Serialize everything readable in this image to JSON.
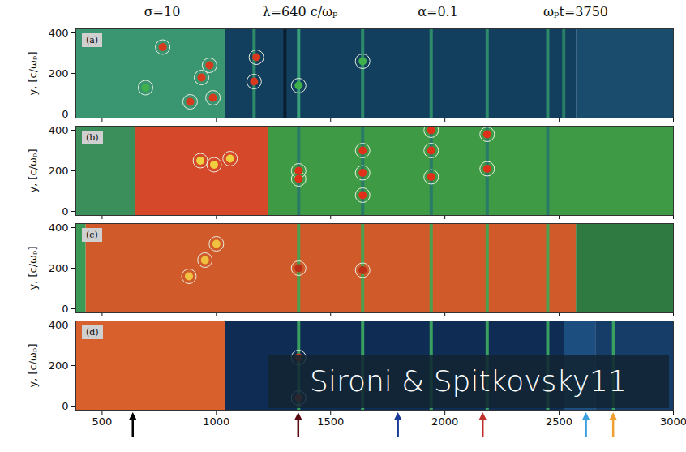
{
  "chart_data": [
    {
      "type": "heatmap",
      "panel": "(a)",
      "ylabel": "y, [c/ωₚ]",
      "annotations": [
        "σ=10",
        "λ=640  c/ωₚ",
        "α=0.1",
        "ωₚt=3750"
      ],
      "xlim": [
        385,
        3000
      ],
      "ylim": [
        -20,
        420
      ],
      "xticks": [
        500,
        1000,
        1500,
        2000,
        2500,
        3000
      ],
      "yticks": [
        0,
        200,
        400
      ],
      "tick_labels": "y",
      "regions": [
        {
          "x0": 385,
          "x1": 1040,
          "color": "#3a9670"
        },
        {
          "x0": 1040,
          "x1": 2575,
          "color": "#123f5e"
        },
        {
          "x0": 2575,
          "x1": 3000,
          "color": "#1a4c6e"
        }
      ],
      "stripes": [
        {
          "x": 1165,
          "color": "#2e8b6a"
        },
        {
          "x": 1300,
          "color": "#0a1e30"
        },
        {
          "x": 1360,
          "color": "#3aa07a"
        },
        {
          "x": 1640,
          "color": "#2e8b6a"
        },
        {
          "x": 1940,
          "color": "#2e8b6a"
        },
        {
          "x": 2185,
          "color": "#2e8b6a"
        },
        {
          "x": 2450,
          "color": "#2e8b6a"
        },
        {
          "x": 2520,
          "color": "#2a7d66"
        }
      ],
      "blobs": [
        {
          "x": 765,
          "y": 330,
          "color": "#d83a1e"
        },
        {
          "x": 970,
          "y": 240,
          "color": "#d83a1e"
        },
        {
          "x": 935,
          "y": 180,
          "color": "#d83a1e"
        },
        {
          "x": 690,
          "y": 130,
          "color": "#3fb04a"
        },
        {
          "x": 885,
          "y": 60,
          "color": "#d83a1e"
        },
        {
          "x": 985,
          "y": 80,
          "color": "#d83a1e"
        },
        {
          "x": 1165,
          "y": 160,
          "color": "#d83a1e"
        },
        {
          "x": 1175,
          "y": 280,
          "color": "#d83a1e"
        },
        {
          "x": 1360,
          "y": 140,
          "color": "#3fb04a"
        },
        {
          "x": 1640,
          "y": 260,
          "color": "#3fb04a"
        }
      ]
    },
    {
      "type": "heatmap",
      "panel": "(b)",
      "ylabel": "y, [c/ωₚ]",
      "xlim": [
        385,
        3000
      ],
      "ylim": [
        -20,
        420
      ],
      "xticks": [
        500,
        1000,
        1500,
        2000,
        2500,
        3000
      ],
      "yticks": [
        0,
        200,
        400
      ],
      "tick_labels": "y",
      "regions": [
        {
          "x0": 385,
          "x1": 647,
          "color": "#3a8f5a"
        },
        {
          "x0": 647,
          "x1": 1227,
          "color": "#d5482a"
        },
        {
          "x0": 1227,
          "x1": 3000,
          "color": "#3f9a45"
        }
      ],
      "stripes": [
        {
          "x": 1360,
          "color": "#2a7a6a"
        },
        {
          "x": 1640,
          "color": "#2a7a6a"
        },
        {
          "x": 1940,
          "color": "#2a7a6a"
        },
        {
          "x": 2185,
          "color": "#2a7a6a"
        },
        {
          "x": 2450,
          "color": "#2a7a6a"
        }
      ],
      "blobs": [
        {
          "x": 930,
          "y": 250,
          "color": "#f0d040"
        },
        {
          "x": 990,
          "y": 230,
          "color": "#f0d040"
        },
        {
          "x": 1060,
          "y": 260,
          "color": "#f0d040"
        },
        {
          "x": 1360,
          "y": 200,
          "color": "#e0301a"
        },
        {
          "x": 1360,
          "y": 160,
          "color": "#e0301a"
        },
        {
          "x": 1640,
          "y": 300,
          "color": "#e0301a"
        },
        {
          "x": 1640,
          "y": 190,
          "color": "#e0301a"
        },
        {
          "x": 1640,
          "y": 80,
          "color": "#e0301a"
        },
        {
          "x": 1940,
          "y": 400,
          "color": "#e0301a"
        },
        {
          "x": 1940,
          "y": 300,
          "color": "#e0301a"
        },
        {
          "x": 1940,
          "y": 170,
          "color": "#e0301a"
        },
        {
          "x": 2185,
          "y": 380,
          "color": "#e0301a"
        },
        {
          "x": 2185,
          "y": 210,
          "color": "#e0301a"
        }
      ]
    },
    {
      "type": "heatmap",
      "panel": "(c)",
      "ylabel": "y, [c/ωₚ]",
      "xlim": [
        385,
        3000
      ],
      "ylim": [
        -20,
        420
      ],
      "xticks": [
        500,
        1000,
        1500,
        2000,
        2500,
        3000
      ],
      "yticks": [
        0,
        200,
        400
      ],
      "tick_labels": "y",
      "regions": [
        {
          "x0": 385,
          "x1": 430,
          "color": "#3a9a55"
        },
        {
          "x0": 430,
          "x1": 2575,
          "color": "#d05a2a"
        },
        {
          "x0": 2575,
          "x1": 3000,
          "color": "#2f7a40"
        }
      ],
      "stripes": [
        {
          "x": 1360,
          "color": "#4aa050"
        },
        {
          "x": 1640,
          "color": "#4aa050"
        },
        {
          "x": 1940,
          "color": "#4aa050"
        },
        {
          "x": 2185,
          "color": "#4aa050"
        },
        {
          "x": 2450,
          "color": "#4aa050"
        }
      ],
      "blobs": [
        {
          "x": 880,
          "y": 160,
          "color": "#f0c040"
        },
        {
          "x": 950,
          "y": 240,
          "color": "#f0c040"
        },
        {
          "x": 1000,
          "y": 320,
          "color": "#f0c040"
        },
        {
          "x": 1360,
          "y": 200,
          "color": "#b8301a"
        },
        {
          "x": 1640,
          "y": 190,
          "color": "#b8301a"
        }
      ]
    },
    {
      "type": "heatmap",
      "panel": "(d)",
      "ylabel": "y, [c/ωₚ]",
      "xlim": [
        385,
        3000
      ],
      "ylim": [
        -20,
        420
      ],
      "xticks": [
        500,
        1000,
        1500,
        2000,
        2500,
        3000
      ],
      "yticks": [
        0,
        200,
        400
      ],
      "regions": [
        {
          "x0": 385,
          "x1": 1040,
          "color": "#d8602c"
        },
        {
          "x0": 1040,
          "x1": 2524,
          "color": "#0f2c55"
        },
        {
          "x0": 2524,
          "x1": 2660,
          "color": "#1c4f80"
        },
        {
          "x0": 2660,
          "x1": 3000,
          "color": "#163c68"
        }
      ],
      "stripes": [
        {
          "x": 1360,
          "color": "#3aa060"
        },
        {
          "x": 1640,
          "color": "#3aa060"
        },
        {
          "x": 1940,
          "color": "#3aa060"
        },
        {
          "x": 2185,
          "color": "#3aa060"
        },
        {
          "x": 2450,
          "color": "#3aa060"
        },
        {
          "x": 2738,
          "color": "#3aa060"
        }
      ],
      "blobs": [
        {
          "x": 1360,
          "y": 240,
          "color": "#c83a1e"
        },
        {
          "x": 1360,
          "y": 40,
          "color": "#c83a1e"
        }
      ],
      "arrows": [
        {
          "x": 636,
          "color": "#000000"
        },
        {
          "x": 1360,
          "color": "#5a0a10"
        },
        {
          "x": 1796,
          "color": "#1a3a9a"
        },
        {
          "x": 2167,
          "color": "#c0302a"
        },
        {
          "x": 2619,
          "color": "#3aa0e0"
        },
        {
          "x": 2738,
          "color": "#f0a030"
        }
      ],
      "caption": "Sironi & Spitkovsky11"
    }
  ]
}
